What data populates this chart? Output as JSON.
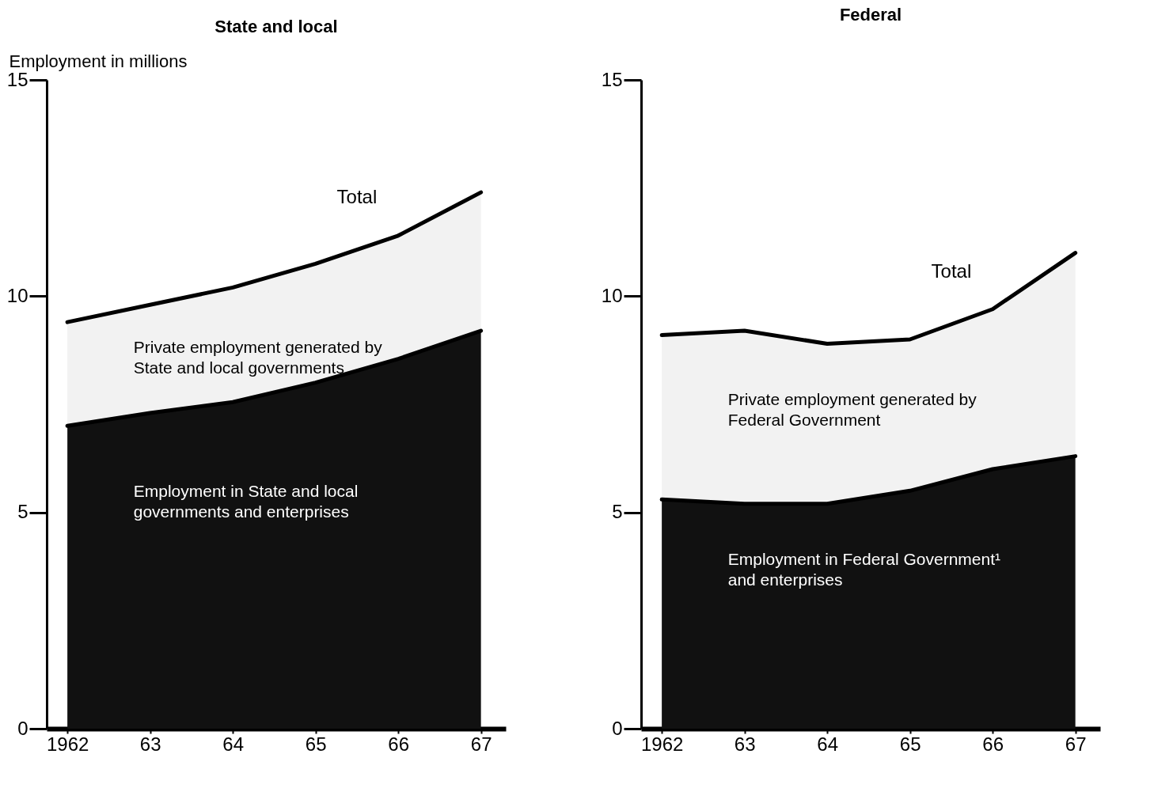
{
  "chart_data": [
    {
      "type": "area",
      "title": "State and local",
      "ylabel": "Employment in millions",
      "stacked": true,
      "x": [
        1962,
        1963,
        1964,
        1965,
        1966,
        1967
      ],
      "series": [
        {
          "name": "Employment in State and local governments and enterprises",
          "color": "#111111",
          "values": [
            7.0,
            7.3,
            7.55,
            8.0,
            8.55,
            9.2
          ]
        },
        {
          "name": "Private employment generated by State and local governments",
          "color": "#f2f2f2",
          "values": [
            2.4,
            2.5,
            2.65,
            2.75,
            2.85,
            3.2
          ]
        }
      ],
      "xlim": [
        1961.75,
        1967.3
      ],
      "xticks": [
        1962,
        {
          "value": 1963,
          "label": "63"
        },
        {
          "value": 1964,
          "label": "64"
        },
        {
          "value": 1965,
          "label": "65"
        },
        {
          "value": 1966,
          "label": "66"
        },
        {
          "value": 1967,
          "label": "67"
        }
      ],
      "ylim": [
        0,
        15
      ],
      "yticks": [
        0,
        5,
        10,
        15
      ],
      "annotations": [
        "Total"
      ]
    },
    {
      "type": "area",
      "title": "Federal",
      "stacked": true,
      "x": [
        1962,
        1963,
        1964,
        1965,
        1966,
        1967
      ],
      "series": [
        {
          "name": "Employment in Federal Government¹ and enterprises",
          "color": "#111111",
          "values": [
            5.3,
            5.2,
            5.2,
            5.5,
            6.0,
            6.3
          ]
        },
        {
          "name": "Private employment generated by Federal Government",
          "color": "#f2f2f2",
          "values": [
            3.8,
            4.0,
            3.7,
            3.5,
            3.7,
            4.7
          ]
        }
      ],
      "xlim": [
        1961.75,
        1967.3
      ],
      "xticks": [
        1962,
        {
          "value": 1963,
          "label": "63"
        },
        {
          "value": 1964,
          "label": "64"
        },
        {
          "value": 1965,
          "label": "65"
        },
        {
          "value": 1966,
          "label": "66"
        },
        {
          "value": 1967,
          "label": "67"
        }
      ],
      "ylim": [
        0,
        15
      ],
      "yticks": [
        0,
        5,
        10,
        15
      ],
      "annotations": [
        "Total"
      ]
    }
  ]
}
